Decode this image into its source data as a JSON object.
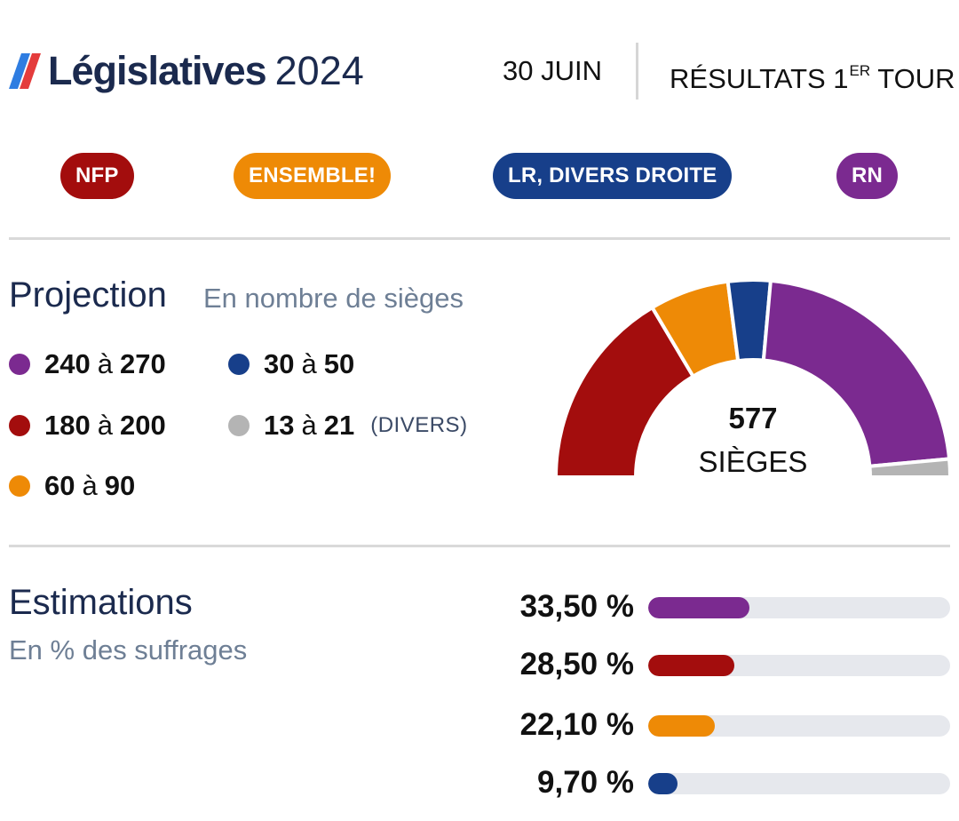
{
  "header": {
    "logo_word": "Législatives",
    "logo_year": "2024",
    "date": "30 JUIN",
    "results_label": "RÉSULTATS 1",
    "results_sup": "ER",
    "results_tail": " TOUR"
  },
  "colors": {
    "rn": "#7b2a90",
    "nfp": "#a30d0d",
    "ensemble": "#ee8a06",
    "lr": "#173f8a",
    "divers": "#b4b4b4",
    "logo_blue": "#2f7de1",
    "logo_red": "#e43c3c"
  },
  "parties": [
    {
      "name": "NFP",
      "color": "#a30d0d"
    },
    {
      "name": "ENSEMBLE!",
      "color": "#ee8a06"
    },
    {
      "name": "LR, DIVERS DROITE",
      "color": "#173f8a"
    },
    {
      "name": "RN",
      "color": "#7b2a90"
    }
  ],
  "projection": {
    "title": "Projection",
    "subtitle": "En nombre de sièges",
    "legend": [
      {
        "lo": "240",
        "a": "à",
        "hi": "270",
        "note": "",
        "color": "#7b2a90"
      },
      {
        "lo": "30",
        "a": "à",
        "hi": "50",
        "note": "",
        "color": "#173f8a"
      },
      {
        "lo": "180",
        "a": "à",
        "hi": "200",
        "note": "",
        "color": "#a30d0d"
      },
      {
        "lo": "13",
        "a": "à",
        "hi": "21",
        "note": "(DIVERS)",
        "color": "#b4b4b4"
      },
      {
        "lo": "60",
        "a": "à",
        "hi": "90",
        "note": "",
        "color": "#ee8a06"
      }
    ],
    "total": "577",
    "total_label": "SIÈGES"
  },
  "estimations": {
    "title": "Estimations",
    "subtitle": "En % des suffrages"
  },
  "chart_data": [
    {
      "type": "pie",
      "variant": "half-donut",
      "total_seats": 577,
      "slices": [
        {
          "party": "NFP",
          "value": 190,
          "color": "#a30d0d"
        },
        {
          "party": "ENSEMBLE!",
          "value": 75,
          "color": "#ee8a06"
        },
        {
          "party": "LR, DIVERS DROITE",
          "value": 40,
          "color": "#173f8a"
        },
        {
          "party": "RN",
          "value": 255,
          "color": "#7b2a90"
        },
        {
          "party": "DIVERS",
          "value": 17,
          "color": "#b4b4b4"
        }
      ]
    },
    {
      "type": "bar",
      "orientation": "horizontal",
      "xlim": [
        0,
        100
      ],
      "bars": [
        {
          "label": "33,50 %",
          "value": 33.5,
          "color": "#7b2a90"
        },
        {
          "label": "28,50 %",
          "value": 28.5,
          "color": "#a30d0d"
        },
        {
          "label": "22,10 %",
          "value": 22.1,
          "color": "#ee8a06"
        },
        {
          "label": "9,70 %",
          "value": 9.7,
          "color": "#173f8a"
        }
      ]
    }
  ]
}
